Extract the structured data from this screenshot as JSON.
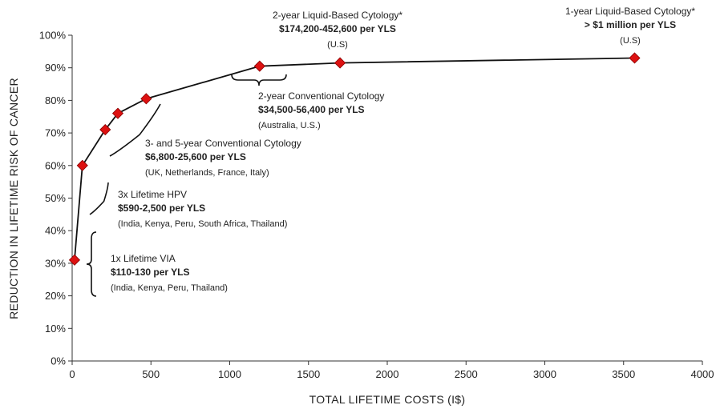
{
  "chart_data": {
    "type": "line",
    "title": "",
    "xlabel": "TOTAL LIFETIME COSTS (I$)",
    "ylabel": "REDUCTION IN LIFETIME RISK OF CANCER",
    "xlim": [
      0,
      4000
    ],
    "ylim": [
      0,
      100
    ],
    "x_ticks": [
      "0",
      "500",
      "1000",
      "1500",
      "2000",
      "2500",
      "3000",
      "3500",
      "4000"
    ],
    "y_ticks": [
      "0%",
      "10%",
      "20%",
      "30%",
      "40%",
      "50%",
      "60%",
      "70%",
      "80%",
      "90%",
      "100%"
    ],
    "grid": false,
    "legend": "none",
    "marker": "diamond",
    "colors": {
      "line": "#111111",
      "marker": "#dd1111",
      "marker_edge": "#880000"
    },
    "series": [
      {
        "points": [
          {
            "x": 15,
            "y": 31
          },
          {
            "x": 65,
            "y": 60
          },
          {
            "x": 210,
            "y": 71
          },
          {
            "x": 290,
            "y": 76
          },
          {
            "x": 470,
            "y": 80.5
          },
          {
            "x": 1190,
            "y": 90.5
          },
          {
            "x": 1700,
            "y": 91.5
          },
          {
            "x": 3570,
            "y": 93
          }
        ]
      }
    ],
    "annotations": [
      {
        "lines": [
          {
            "text": "1x Lifetime VIA",
            "style": "normal"
          },
          {
            "text": "$110-130 per YLS",
            "style": "bold"
          },
          {
            "text": "(India, Kenya, Peru, Thailand)",
            "style": "small"
          }
        ]
      },
      {
        "lines": [
          {
            "text": "3x Lifetime HPV",
            "style": "normal"
          },
          {
            "text": "$590-2,500 per YLS",
            "style": "bold"
          },
          {
            "text": "(India, Kenya, Peru, South Africa, Thailand)",
            "style": "small"
          }
        ]
      },
      {
        "lines": [
          {
            "text": "3- and 5-year Conventional Cytology",
            "style": "normal"
          },
          {
            "text": "$6,800-25,600 per YLS",
            "style": "bold"
          },
          {
            "text": "(UK, Netherlands, France, Italy)",
            "style": "small"
          }
        ]
      },
      {
        "lines": [
          {
            "text": "2-year  Conventional Cytology",
            "style": "normal"
          },
          {
            "text": "$34,500-56,400 per YLS",
            "style": "bold"
          },
          {
            "text": "(Australia, U.S.)",
            "style": "small"
          }
        ]
      },
      {
        "lines": [
          {
            "text": "2-year Liquid-Based Cytology*",
            "style": "normal"
          },
          {
            "text": "$174,200-452,600 per YLS",
            "style": "bold"
          },
          {
            "text": "(U.S)",
            "style": "small"
          }
        ]
      },
      {
        "lines": [
          {
            "text": "1-year Liquid-Based Cytology*",
            "style": "normal"
          },
          {
            "text": "> $1 million per YLS",
            "style": "bold"
          },
          {
            "text": "(U.S)",
            "style": "small"
          }
        ]
      }
    ]
  }
}
